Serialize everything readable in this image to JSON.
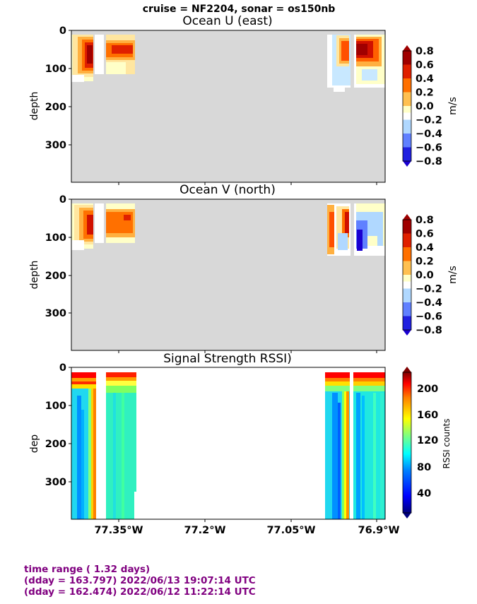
{
  "suptitle": "cruise = NF2204,  sonar = os150nb",
  "footer": {
    "line1": "time range ( 1.32 days)",
    "line2": "(dday = 163.797) 2022/06/13 19:07:14 UTC",
    "line3": "(dday = 162.474) 2022/06/12 11:22:14 UTC"
  },
  "colors": {
    "nodata": "#d8d8d8"
  },
  "chart_data": [
    {
      "type": "heatmap",
      "title": "Ocean U (east)",
      "ylabel": "depth",
      "ylim": [
        400,
        0
      ],
      "yticks": [
        "0",
        "100",
        "200",
        "300"
      ],
      "xticks": [],
      "colorbar": {
        "label": "m/s",
        "range": [
          -0.8,
          0.8
        ],
        "ticks": [
          "0.8",
          "0.6",
          "0.4",
          "0.2",
          "0.0",
          "−0.2",
          "−0.4",
          "−0.6",
          "−0.8"
        ]
      }
    },
    {
      "type": "heatmap",
      "title": "Ocean V (north)",
      "ylabel": "depth",
      "ylim": [
        400,
        0
      ],
      "yticks": [
        "0",
        "100",
        "200",
        "300"
      ],
      "xticks": [],
      "colorbar": {
        "label": "m/s",
        "range": [
          -0.8,
          0.8
        ],
        "ticks": [
          "0.8",
          "0.6",
          "0.4",
          "0.2",
          "0.0",
          "−0.2",
          "−0.4",
          "−0.6",
          "−0.8"
        ]
      }
    },
    {
      "type": "heatmap",
      "title": "Signal Strength RSSI)",
      "ylabel": "dep",
      "ylim": [
        400,
        0
      ],
      "yticks": [
        "0",
        "100",
        "200",
        "300"
      ],
      "xticks": [
        "77.35°W",
        "77.2°W",
        "77.05°W",
        "76.9°W"
      ],
      "colorbar": {
        "label": "RSSI counts",
        "range": [
          20,
          230
        ],
        "ticks": [
          "200",
          "160",
          "120",
          "80",
          "40"
        ]
      }
    }
  ]
}
